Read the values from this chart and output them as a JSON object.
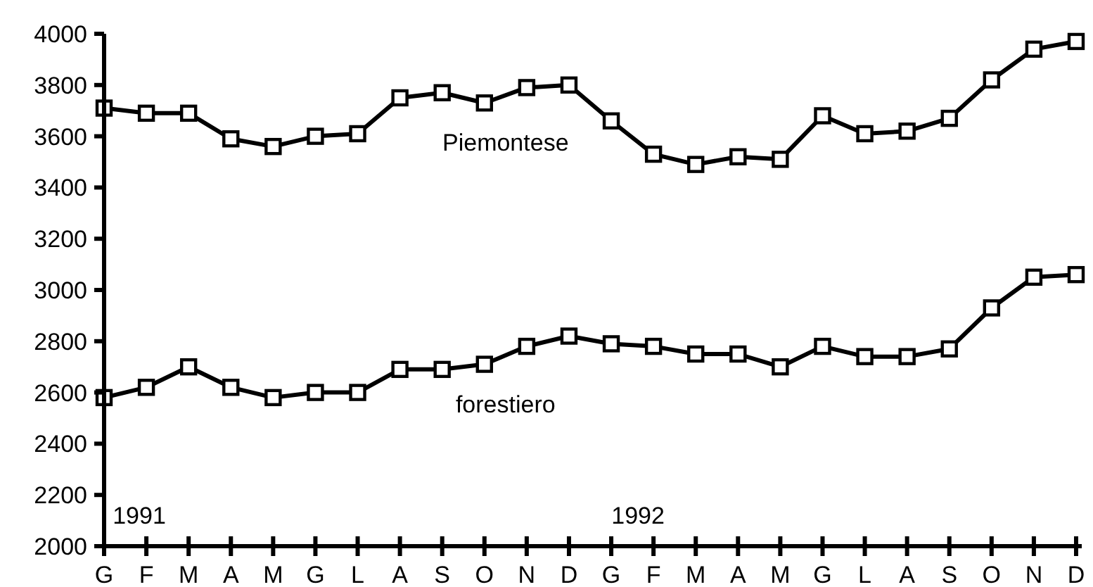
{
  "chart_data": {
    "type": "line",
    "categories": [
      "G",
      "F",
      "M",
      "A",
      "M",
      "G",
      "L",
      "A",
      "S",
      "O",
      "N",
      "D",
      "G",
      "F",
      "M",
      "A",
      "M",
      "G",
      "L",
      "A",
      "S",
      "O",
      "N",
      "D"
    ],
    "series": [
      {
        "name": "Piemontese",
        "color": "#000000",
        "values": [
          3710,
          3690,
          3690,
          3590,
          3560,
          3600,
          3610,
          3750,
          3770,
          3730,
          3790,
          3800,
          3660,
          3530,
          3490,
          3520,
          3510,
          3680,
          3610,
          3620,
          3670,
          3820,
          3940,
          3970
        ]
      },
      {
        "name": "forestiero",
        "color": "#000000",
        "values": [
          2580,
          2620,
          2700,
          2620,
          2580,
          2600,
          2600,
          2690,
          2690,
          2710,
          2780,
          2820,
          2790,
          2780,
          2750,
          2750,
          2700,
          2780,
          2740,
          2740,
          2770,
          2930,
          3050,
          3060
        ]
      }
    ],
    "ylim": [
      2000,
      4000
    ],
    "yticks": [
      2000,
      2200,
      2400,
      2600,
      2800,
      3000,
      3200,
      3400,
      3600,
      3800,
      4000
    ],
    "annotations": [
      "1991",
      "1992"
    ],
    "grid": false,
    "marker": "square",
    "line_style": "solid"
  }
}
